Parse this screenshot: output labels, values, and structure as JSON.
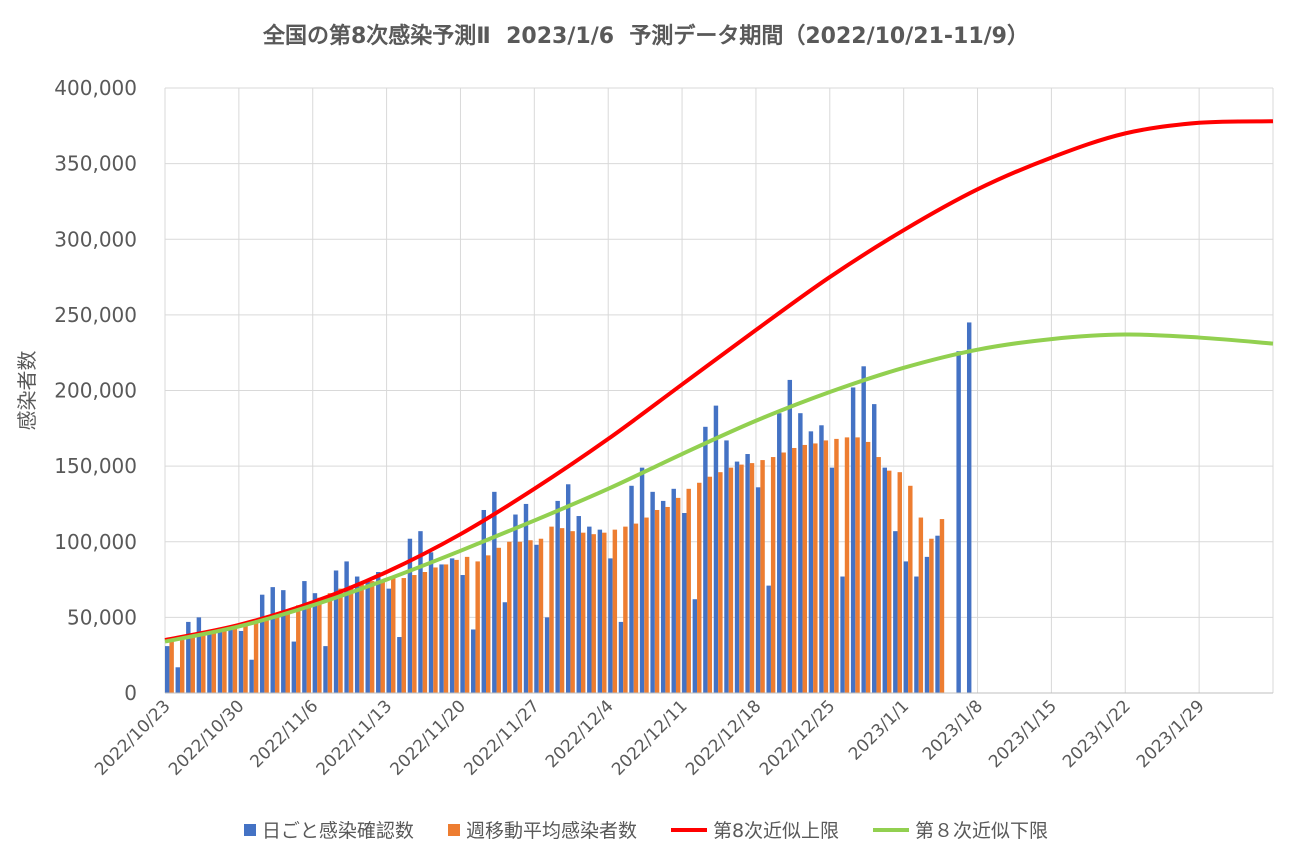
{
  "chart_data": {
    "type": "bar",
    "title": "全国の第8次感染予測Ⅱ  2023/1/6  予測データ期間（2022/10/21-11/9）",
    "xlabel": "",
    "ylabel": "感染者数",
    "ylim": [
      0,
      400000
    ],
    "y_ticks": [
      0,
      50000,
      100000,
      150000,
      200000,
      250000,
      300000,
      350000,
      400000
    ],
    "y_tick_labels": [
      "0",
      "50,000",
      "100,000",
      "150,000",
      "200,000",
      "250,000",
      "300,000",
      "350,000",
      "400,000"
    ],
    "x_start": "2022-10-23",
    "x_end": "2023-02-05",
    "x_tick_dates": [
      "2022-10-23",
      "2022-10-30",
      "2022-11-06",
      "2022-11-13",
      "2022-11-20",
      "2022-11-27",
      "2022-12-04",
      "2022-12-11",
      "2022-12-18",
      "2022-12-25",
      "2023-01-01",
      "2023-01-08",
      "2023-01-15",
      "2023-01-22",
      "2023-01-29"
    ],
    "x_tick_labels": [
      "2022/10/23",
      "2022/10/30",
      "2022/11/6",
      "2022/11/13",
      "2022/11/20",
      "2022/11/27",
      "2022/12/4",
      "2022/12/11",
      "2022/12/18",
      "2022/12/25",
      "2023/1/1",
      "2023/1/8",
      "2023/1/15",
      "2023/1/22",
      "2023/1/29"
    ],
    "grid": true,
    "legend_position": "bottom",
    "series": [
      {
        "name": "日ごと感染確認数",
        "kind": "bar",
        "color": "#4472C4",
        "start": "2022-10-23",
        "values": [
          31000,
          17000,
          47000,
          50000,
          41000,
          41000,
          43000,
          41000,
          22000,
          65000,
          70000,
          68000,
          34000,
          74000,
          66000,
          31000,
          81000,
          87000,
          77000,
          74000,
          80000,
          69000,
          37000,
          102000,
          107000,
          93000,
          85000,
          89000,
          78000,
          42000,
          121000,
          133000,
          60000,
          118000,
          125000,
          98000,
          50000,
          127000,
          138000,
          117000,
          110000,
          108000,
          89000,
          47000,
          137000,
          149000,
          133000,
          127000,
          135000,
          119000,
          62000,
          176000,
          190000,
          167000,
          153000,
          158000,
          136000,
          71000,
          185000,
          207000,
          185000,
          173000,
          177000,
          149000,
          77000,
          202000,
          216000,
          191000,
          149000,
          107000,
          87000,
          77000,
          90000,
          104000,
          null,
          226000,
          245000
        ]
      },
      {
        "name": "週移動平均感染者数",
        "kind": "bar",
        "color": "#ED7D31",
        "start": "2022-10-23",
        "values": [
          34000,
          36000,
          38000,
          40000,
          41000,
          42000,
          45000,
          46000,
          48000,
          50000,
          53000,
          55000,
          58000,
          60000,
          63000,
          66000,
          69000,
          71000,
          73000,
          74000,
          75000,
          76000,
          76000,
          78000,
          80000,
          83000,
          85000,
          88000,
          90000,
          87000,
          91000,
          96000,
          100000,
          100000,
          101000,
          102000,
          110000,
          109000,
          107000,
          106000,
          105000,
          106000,
          108000,
          110000,
          112000,
          116000,
          121000,
          123000,
          129000,
          135000,
          139000,
          143000,
          146000,
          149000,
          151000,
          152000,
          154000,
          156000,
          159000,
          162000,
          164000,
          165000,
          167000,
          168000,
          169000,
          169000,
          166000,
          156000,
          147000,
          146000,
          137000,
          116000,
          102000,
          115000
        ]
      },
      {
        "name": "第8次近似上限",
        "kind": "line",
        "color": "#FF0000",
        "points": [
          [
            "2022-10-23",
            35000
          ],
          [
            "2022-10-30",
            45000
          ],
          [
            "2022-11-06",
            60000
          ],
          [
            "2022-11-13",
            80000
          ],
          [
            "2022-11-20",
            105000
          ],
          [
            "2022-11-27",
            135000
          ],
          [
            "2022-12-04",
            168000
          ],
          [
            "2022-12-11",
            204000
          ],
          [
            "2022-12-18",
            240000
          ],
          [
            "2022-12-25",
            275000
          ],
          [
            "2023-01-01",
            306000
          ],
          [
            "2023-01-08",
            333000
          ],
          [
            "2023-01-15",
            354000
          ],
          [
            "2023-01-22",
            370000
          ],
          [
            "2023-01-29",
            377000
          ],
          [
            "2023-02-05",
            378000
          ]
        ]
      },
      {
        "name": "第８次近似下限",
        "kind": "line",
        "color": "#92D050",
        "points": [
          [
            "2022-10-23",
            34000
          ],
          [
            "2022-10-30",
            44000
          ],
          [
            "2022-11-06",
            58000
          ],
          [
            "2022-11-13",
            75000
          ],
          [
            "2022-11-20",
            94000
          ],
          [
            "2022-11-27",
            114000
          ],
          [
            "2022-12-04",
            135000
          ],
          [
            "2022-12-11",
            158000
          ],
          [
            "2022-12-18",
            180000
          ],
          [
            "2022-12-25",
            199000
          ],
          [
            "2023-01-01",
            215000
          ],
          [
            "2023-01-08",
            227000
          ],
          [
            "2023-01-15",
            234000
          ],
          [
            "2023-01-22",
            237000
          ],
          [
            "2023-01-29",
            235000
          ],
          [
            "2023-02-05",
            231000
          ]
        ]
      }
    ]
  }
}
